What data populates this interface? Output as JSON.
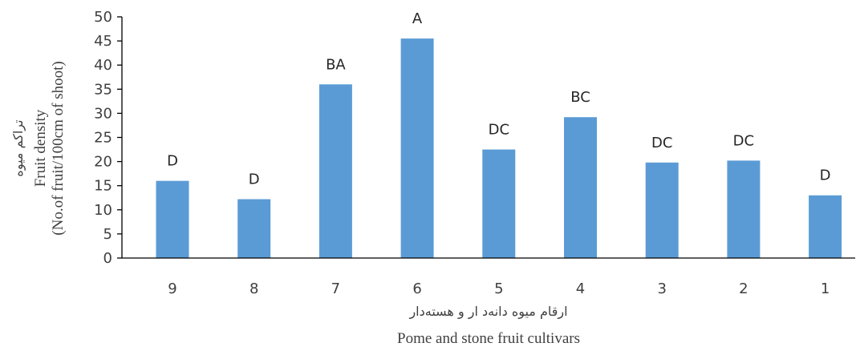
{
  "chart_data": {
    "type": "bar",
    "categories": [
      "9",
      "8",
      "7",
      "6",
      "5",
      "4",
      "3",
      "2",
      "1"
    ],
    "values": [
      16,
      12.2,
      36,
      45.5,
      22.5,
      29.2,
      19.8,
      20.2,
      13
    ],
    "data_labels": [
      "D",
      "D",
      "BA",
      "A",
      "DC",
      "BC",
      "DC",
      "DC",
      "D"
    ],
    "ylim": [
      0,
      50
    ],
    "yticks": [
      0,
      5,
      10,
      15,
      20,
      25,
      30,
      35,
      40,
      45,
      50
    ],
    "ylabel_lines": [
      "تراکم میوه",
      "Fruit density",
      "(No.of fruit/100cm of shoot)"
    ],
    "xlabel_lines": [
      "ارقام میوه دانه‌د ار و هسته‌دار",
      "Pome and stone fruit cultivars"
    ],
    "bar_color": "#5b9bd5",
    "grid": false,
    "legend": "none"
  }
}
